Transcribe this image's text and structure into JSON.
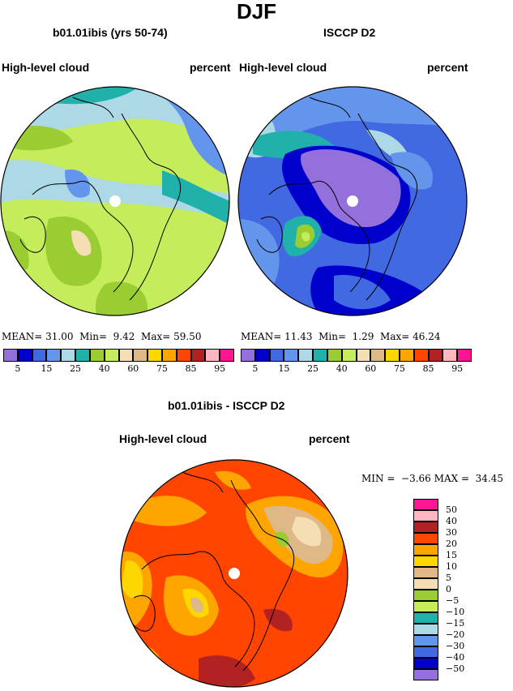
{
  "title": "DJF",
  "panel_left": {
    "case": "b01.01ibis (yrs 50-74)",
    "variable": "High-level cloud",
    "units": "percent",
    "stats": {
      "mean_label": "MEAN=",
      "mean": "31.00",
      "min_label": "Min=",
      "min": "9.42",
      "max_label": "Max=",
      "max": "59.50"
    }
  },
  "panel_right": {
    "case": "ISCCP D2",
    "variable": "High-level cloud",
    "units": "percent",
    "stats": {
      "mean_label": "MEAN=",
      "mean": "11.43",
      "min_label": "Min=",
      "min": "1.29",
      "max_label": "Max=",
      "max": "46.24"
    }
  },
  "top_colorbar": {
    "colors": [
      "#9370db",
      "#0000cd",
      "#4169e1",
      "#6495ed",
      "#add8e6",
      "#20b2aa",
      "#9acd32",
      "#c5ec5a",
      "#f5deb3",
      "#deb887",
      "#ffd700",
      "#ffa500",
      "#ff4500",
      "#b22222",
      "#ffb6c1",
      "#ff1493"
    ],
    "labels": [
      "5",
      "15",
      "25",
      "40",
      "60",
      "75",
      "85",
      "95"
    ]
  },
  "panel_diff": {
    "title": "b01.01ibis - ISCCP D2",
    "variable": "High-level cloud",
    "units": "percent",
    "stats": {
      "min_label": "MIN =",
      "min": "−3.66",
      "max_label": "MAX =",
      "max": "34.45"
    }
  },
  "diff_colorbar": {
    "colors_top_to_bottom": [
      "#ff1493",
      "#ffb6c1",
      "#b22222",
      "#ff4500",
      "#ffa500",
      "#ffd700",
      "#deb887",
      "#f5deb3",
      "#9acd32",
      "#c5ec5a",
      "#20b2aa",
      "#add8e6",
      "#6495ed",
      "#4169e1",
      "#0000cd",
      "#9370db"
    ],
    "labels_top_to_bottom": [
      "50",
      "40",
      "30",
      "20",
      "15",
      "10",
      "5",
      "0",
      "−5",
      "−10",
      "−15",
      "−20",
      "−30",
      "−40",
      "−50"
    ]
  },
  "map_colors": {
    "left_base": "#c5ec5a",
    "right_base": "#4169e1",
    "diff_base": "#ff4500",
    "pole_marker": "#ffffff"
  }
}
